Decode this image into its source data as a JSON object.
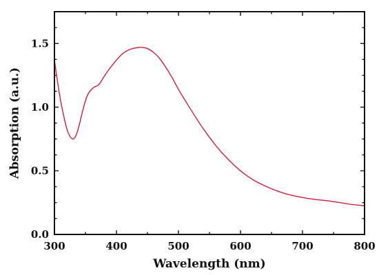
{
  "chart_data": {
    "type": "line",
    "title": "",
    "xlabel": "Wavelength (nm)",
    "ylabel": "Absorption (a.u.)",
    "xlim": [
      300,
      800
    ],
    "ylim": [
      0.0,
      1.75
    ],
    "x_ticks": [
      300,
      400,
      500,
      600,
      700,
      800
    ],
    "x_tick_labels": [
      "300",
      "400",
      "500",
      "600",
      "700",
      "800"
    ],
    "y_ticks": [
      0.0,
      0.5,
      1.0,
      1.5
    ],
    "y_tick_labels": [
      "0.0",
      "0.5",
      "1.0",
      "1.5"
    ],
    "grid": false,
    "legend": "none",
    "series": [
      {
        "color": "#d21f3c",
        "x": [
          300,
          305,
          310,
          315,
          320,
          325,
          330,
          335,
          340,
          345,
          350,
          355,
          360,
          365,
          370,
          375,
          380,
          390,
          400,
          410,
          420,
          430,
          440,
          450,
          460,
          470,
          480,
          490,
          500,
          520,
          540,
          560,
          580,
          600,
          620,
          640,
          660,
          680,
          700,
          720,
          740,
          760,
          780,
          800
        ],
        "y": [
          1.37,
          1.2,
          1.05,
          0.93,
          0.83,
          0.77,
          0.75,
          0.78,
          0.86,
          0.96,
          1.05,
          1.11,
          1.14,
          1.16,
          1.17,
          1.2,
          1.24,
          1.31,
          1.37,
          1.42,
          1.45,
          1.465,
          1.47,
          1.46,
          1.43,
          1.38,
          1.31,
          1.23,
          1.14,
          0.98,
          0.83,
          0.7,
          0.59,
          0.5,
          0.43,
          0.38,
          0.34,
          0.31,
          0.29,
          0.275,
          0.265,
          0.25,
          0.235,
          0.225
        ]
      }
    ]
  }
}
